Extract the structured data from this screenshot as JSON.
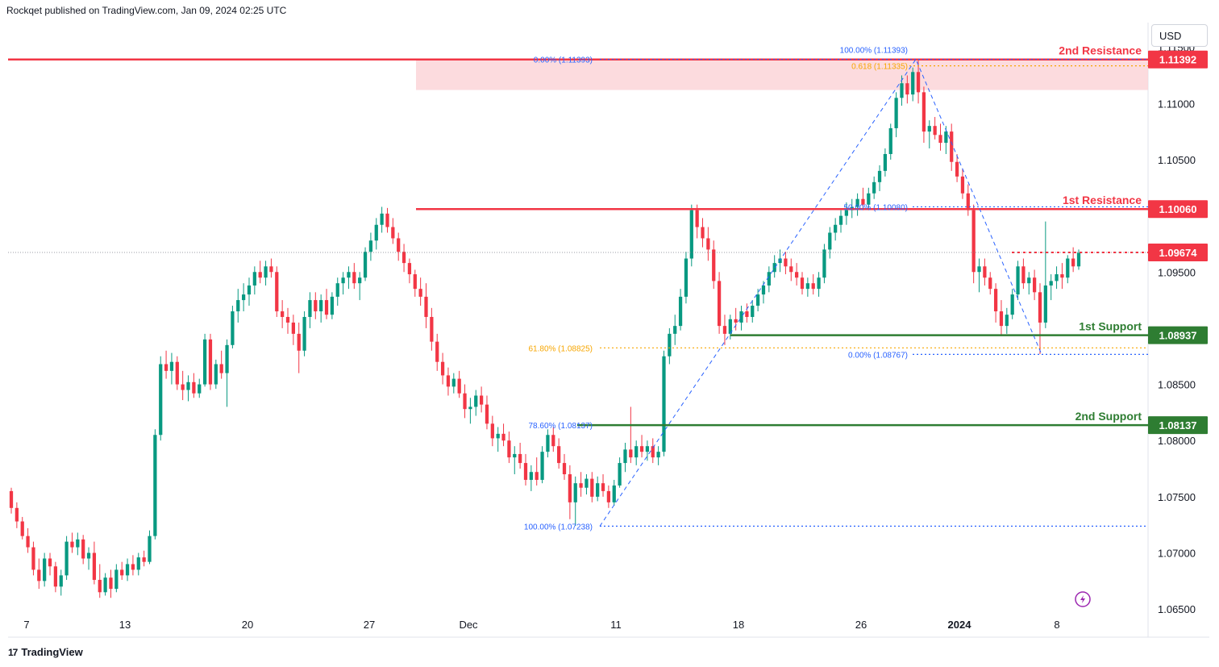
{
  "header": {
    "text": "Rockqet published on TradingView.com, Jan 09, 2024 02:25 UTC"
  },
  "toolbar": {
    "currency": "USD"
  },
  "footer": {
    "brand": "TradingView",
    "logo_mark": "17"
  },
  "colors": {
    "up": "#089981",
    "down": "#f23645",
    "resistance": "#f23645",
    "support": "#2e7d32",
    "fib_blue": "#2962ff",
    "fib_orange": "#f7a600",
    "zone": "#fcd5d8"
  },
  "chart_data": {
    "type": "candlestick",
    "symbol_quote": "USD",
    "x_ticks": [
      "7",
      "13",
      "20",
      "27",
      "Dec",
      "11",
      "18",
      "26",
      "2024",
      "8"
    ],
    "y_ticks": [
      "1.11500",
      "1.11000",
      "1.10500",
      "1.09500",
      "1.08500",
      "1.08000",
      "1.07500",
      "1.07000",
      "1.06500"
    ],
    "ylim": [
      1.0625,
      1.1172
    ],
    "last_price": 1.09674,
    "levels": [
      {
        "name": "2nd Resistance",
        "value": 1.11392,
        "label": "1.11392",
        "kind": "resistance"
      },
      {
        "name": "1st Resistance",
        "value": 1.1006,
        "label": "1.10060",
        "kind": "resistance"
      },
      {
        "name": "current",
        "value": 1.09674,
        "label": "1.09674",
        "kind": "price"
      },
      {
        "name": "1st Support",
        "value": 1.08937,
        "label": "1.08937",
        "kind": "support"
      },
      {
        "name": "2nd Support",
        "value": 1.08137,
        "label": "1.08137",
        "kind": "support"
      }
    ],
    "fib_labels": [
      {
        "text": "0.00% (1.11393)",
        "color": "blue"
      },
      {
        "text": "100.00% (1.11393)",
        "color": "blue"
      },
      {
        "text": "0.618 (1.11335)",
        "color": "orange"
      },
      {
        "text": "50.00% (1.10080)",
        "color": "blue"
      },
      {
        "text": "61.80% (1.08825)",
        "color": "orange"
      },
      {
        "text": "0.00% (1.08767)",
        "color": "blue"
      },
      {
        "text": "78.60% (1.08137)",
        "color": "blue"
      },
      {
        "text": "100.00% (1.07238)",
        "color": "blue"
      }
    ],
    "anchor_path": [
      {
        "date": "Dec 11",
        "price": 1.07238
      },
      {
        "date": "Dec 28",
        "price": 1.11393
      },
      {
        "date": "Jan 05",
        "price": 1.08767
      }
    ],
    "candles": [
      [
        1.0755,
        1.0758,
        1.0735,
        1.074
      ],
      [
        1.074,
        1.0745,
        1.0722,
        1.0728
      ],
      [
        1.0728,
        1.0732,
        1.0712,
        1.0715
      ],
      [
        1.0715,
        1.0722,
        1.07,
        1.0705
      ],
      [
        1.0705,
        1.071,
        1.068,
        1.0685
      ],
      [
        1.0685,
        1.0695,
        1.0668,
        1.0675
      ],
      [
        1.0675,
        1.07,
        1.067,
        1.0695
      ],
      [
        1.0695,
        1.07,
        1.068,
        1.0688
      ],
      [
        1.0688,
        1.0692,
        1.0665,
        1.067
      ],
      [
        1.067,
        1.0685,
        1.0662,
        1.068
      ],
      [
        1.068,
        1.0715,
        1.0676,
        1.071
      ],
      [
        1.071,
        1.0718,
        1.07,
        1.0705
      ],
      [
        1.0705,
        1.0718,
        1.0698,
        1.0712
      ],
      [
        1.0712,
        1.0716,
        1.069,
        1.0695
      ],
      [
        1.0695,
        1.0705,
        1.0685,
        1.07
      ],
      [
        1.07,
        1.071,
        1.0672,
        1.0676
      ],
      [
        1.0676,
        1.069,
        1.066,
        1.0665
      ],
      [
        1.0665,
        1.0682,
        1.0662,
        1.0678
      ],
      [
        1.0678,
        1.0685,
        1.066,
        1.0668
      ],
      [
        1.0668,
        1.069,
        1.0665,
        1.0685
      ],
      [
        1.0685,
        1.0692,
        1.0676,
        1.068
      ],
      [
        1.068,
        1.0695,
        1.0675,
        1.069
      ],
      [
        1.069,
        1.0698,
        1.068,
        1.0685
      ],
      [
        1.0685,
        1.07,
        1.068,
        1.0696
      ],
      [
        1.0696,
        1.0702,
        1.0688,
        1.0692
      ],
      [
        1.0692,
        1.072,
        1.069,
        1.0715
      ],
      [
        1.0715,
        1.081,
        1.0712,
        1.0805
      ],
      [
        1.0805,
        1.0875,
        1.08,
        1.0868
      ],
      [
        1.0868,
        1.088,
        1.0855,
        1.0862
      ],
      [
        1.0862,
        1.0878,
        1.085,
        1.087
      ],
      [
        1.087,
        1.0875,
        1.0845,
        1.085
      ],
      [
        1.085,
        1.0862,
        1.0836,
        1.0845
      ],
      [
        1.0845,
        1.0858,
        1.0835,
        1.0852
      ],
      [
        1.0852,
        1.086,
        1.0838,
        1.0842
      ],
      [
        1.0842,
        1.0855,
        1.0838,
        1.085
      ],
      [
        1.085,
        1.0895,
        1.0848,
        1.089
      ],
      [
        1.089,
        1.0895,
        1.0845,
        1.085
      ],
      [
        1.085,
        1.0872,
        1.0846,
        1.0868
      ],
      [
        1.0868,
        1.088,
        1.0855,
        1.086
      ],
      [
        1.086,
        1.089,
        1.083,
        1.0885
      ],
      [
        1.0885,
        1.092,
        1.0882,
        1.0915
      ],
      [
        1.0915,
        1.0935,
        1.0905,
        1.0925
      ],
      [
        1.0925,
        1.094,
        1.0915,
        1.093
      ],
      [
        1.093,
        1.0945,
        1.092,
        1.0938
      ],
      [
        1.0938,
        1.0955,
        1.093,
        1.095
      ],
      [
        1.095,
        1.096,
        1.094,
        1.0945
      ],
      [
        1.0945,
        1.096,
        1.0938,
        1.0955
      ],
      [
        1.0955,
        1.0962,
        1.0945,
        1.095
      ],
      [
        1.095,
        1.0955,
        1.091,
        1.0915
      ],
      [
        1.0915,
        1.0925,
        1.09,
        1.091
      ],
      [
        1.091,
        1.0918,
        1.0895,
        1.0905
      ],
      [
        1.0905,
        1.0912,
        1.0885,
        1.0895
      ],
      [
        1.0895,
        1.0905,
        1.086,
        1.088
      ],
      [
        1.088,
        1.0915,
        1.0875,
        1.091
      ],
      [
        1.091,
        1.0932,
        1.09,
        1.0925
      ],
      [
        1.0925,
        1.0932,
        1.0908,
        1.0915
      ],
      [
        1.0915,
        1.093,
        1.0905,
        1.0925
      ],
      [
        1.0925,
        1.0935,
        1.0908,
        1.0912
      ],
      [
        1.0912,
        1.0932,
        1.0908,
        1.0928
      ],
      [
        1.0928,
        1.0945,
        1.092,
        1.094
      ],
      [
        1.094,
        1.095,
        1.093,
        1.0945
      ],
      [
        1.0945,
        1.0955,
        1.0935,
        1.095
      ],
      [
        1.095,
        1.0958,
        1.0935,
        1.094
      ],
      [
        1.094,
        1.095,
        1.0925,
        1.0945
      ],
      [
        1.0945,
        1.0972,
        1.0942,
        1.0968
      ],
      [
        1.0968,
        1.0985,
        1.096,
        1.0978
      ],
      [
        1.0978,
        1.0998,
        1.097,
        1.0992
      ],
      [
        1.0992,
        1.1008,
        1.0985,
        1.1002
      ],
      [
        1.1002,
        1.1007,
        1.0985,
        1.099
      ],
      [
        1.099,
        1.0998,
        1.0975,
        1.098
      ],
      [
        1.098,
        1.0985,
        1.096,
        1.0968
      ],
      [
        1.0968,
        1.0975,
        1.095,
        1.0958
      ],
      [
        1.0958,
        1.0962,
        1.094,
        1.0948
      ],
      [
        1.0948,
        1.0952,
        1.0928,
        1.0935
      ],
      [
        1.0935,
        1.0945,
        1.092,
        1.0928
      ],
      [
        1.0928,
        1.094,
        1.09,
        1.091
      ],
      [
        1.091,
        1.0918,
        1.088,
        1.0888
      ],
      [
        1.0888,
        1.0895,
        1.0862,
        1.087
      ],
      [
        1.087,
        1.0878,
        1.085,
        1.0858
      ],
      [
        1.0858,
        1.0865,
        1.084,
        1.0848
      ],
      [
        1.0848,
        1.086,
        1.0842,
        1.0855
      ],
      [
        1.0855,
        1.0862,
        1.0838,
        1.0842
      ],
      [
        1.0842,
        1.085,
        1.082,
        1.0828
      ],
      [
        1.0828,
        1.0838,
        1.0815,
        1.083
      ],
      [
        1.083,
        1.0845,
        1.0822,
        1.084
      ],
      [
        1.084,
        1.0848,
        1.0825,
        1.0832
      ],
      [
        1.0832,
        1.084,
        1.081,
        1.0815
      ],
      [
        1.0815,
        1.0822,
        1.0795,
        1.0802
      ],
      [
        1.0802,
        1.0812,
        1.079,
        1.0806
      ],
      [
        1.0806,
        1.0815,
        1.0795,
        1.08
      ],
      [
        1.08,
        1.0808,
        1.078,
        1.0785
      ],
      [
        1.0785,
        1.0795,
        1.077,
        1.0788
      ],
      [
        1.0788,
        1.0798,
        1.0775,
        1.078
      ],
      [
        1.078,
        1.0788,
        1.076,
        1.0765
      ],
      [
        1.0765,
        1.0778,
        1.0755,
        1.0772
      ],
      [
        1.0772,
        1.0785,
        1.076,
        1.0765
      ],
      [
        1.0765,
        1.0795,
        1.0762,
        1.079
      ],
      [
        1.079,
        1.081,
        1.0785,
        1.0805
      ],
      [
        1.0805,
        1.0812,
        1.079,
        1.0795
      ],
      [
        1.0795,
        1.0802,
        1.0775,
        1.078
      ],
      [
        1.078,
        1.0788,
        1.0765,
        1.077
      ],
      [
        1.077,
        1.0778,
        1.073,
        1.0745
      ],
      [
        1.0745,
        1.0768,
        1.0724,
        1.0762
      ],
      [
        1.0762,
        1.0772,
        1.075,
        1.0758
      ],
      [
        1.0758,
        1.077,
        1.0752,
        1.0766
      ],
      [
        1.0766,
        1.0772,
        1.0745,
        1.075
      ],
      [
        1.075,
        1.0768,
        1.0746,
        1.0762
      ],
      [
        1.0762,
        1.077,
        1.075,
        1.0755
      ],
      [
        1.0755,
        1.076,
        1.074,
        1.0745
      ],
      [
        1.0745,
        1.0765,
        1.0742,
        1.076
      ],
      [
        1.076,
        1.0785,
        1.0758,
        1.078
      ],
      [
        1.078,
        1.0798,
        1.0772,
        1.0792
      ],
      [
        1.0792,
        1.083,
        1.078,
        1.0785
      ],
      [
        1.0785,
        1.08,
        1.0778,
        1.0795
      ],
      [
        1.0795,
        1.0805,
        1.0785,
        1.079
      ],
      [
        1.079,
        1.08,
        1.0782,
        1.0795
      ],
      [
        1.0795,
        1.0802,
        1.078,
        1.0785
      ],
      [
        1.0785,
        1.0795,
        1.0778,
        1.079
      ],
      [
        1.079,
        1.088,
        1.0786,
        1.0875
      ],
      [
        1.0875,
        1.09,
        1.0868,
        1.0895
      ],
      [
        1.0895,
        1.0912,
        1.0885,
        1.0902
      ],
      [
        1.0902,
        1.0935,
        1.0898,
        1.0928
      ],
      [
        1.0928,
        1.0968,
        1.0922,
        1.0962
      ],
      [
        1.0962,
        1.101,
        1.0955,
        1.1005
      ],
      [
        1.1005,
        1.101,
        1.098,
        1.099
      ],
      [
        1.099,
        1.0998,
        1.0972,
        1.098
      ],
      [
        1.098,
        1.099,
        1.096,
        1.097
      ],
      [
        1.097,
        1.0978,
        1.0935,
        1.0942
      ],
      [
        1.0942,
        1.095,
        1.0895,
        1.0902
      ],
      [
        1.0902,
        1.0912,
        1.0885,
        1.0895
      ],
      [
        1.0895,
        1.0912,
        1.089,
        1.0908
      ],
      [
        1.0908,
        1.0918,
        1.0898,
        1.0905
      ],
      [
        1.0905,
        1.092,
        1.0898,
        1.0915
      ],
      [
        1.0915,
        1.0922,
        1.0905,
        1.091
      ],
      [
        1.091,
        1.0925,
        1.0905,
        1.092
      ],
      [
        1.092,
        1.0935,
        1.0915,
        1.093
      ],
      [
        1.093,
        1.0942,
        1.0922,
        1.0938
      ],
      [
        1.0938,
        1.0955,
        1.0932,
        1.095
      ],
      [
        1.095,
        1.0965,
        1.0945,
        1.0958
      ],
      [
        1.0958,
        1.097,
        1.095,
        1.0962
      ],
      [
        1.0962,
        1.0968,
        1.0948,
        1.0955
      ],
      [
        1.0955,
        1.0962,
        1.0942,
        1.095
      ],
      [
        1.095,
        1.0958,
        1.0938,
        1.0945
      ],
      [
        1.0945,
        1.095,
        1.093,
        1.0935
      ],
      [
        1.0935,
        1.0945,
        1.0928,
        1.094
      ],
      [
        1.094,
        1.0948,
        1.093,
        1.0935
      ],
      [
        1.0935,
        1.095,
        1.0928,
        1.0945
      ],
      [
        1.0945,
        1.0975,
        1.094,
        1.097
      ],
      [
        1.097,
        1.099,
        1.0962,
        1.0985
      ],
      [
        1.0985,
        1.0998,
        1.0978,
        1.0992
      ],
      [
        1.0992,
        1.1005,
        1.0985,
        1.1
      ],
      [
        1.1,
        1.1012,
        1.0992,
        1.1005
      ],
      [
        1.1005,
        1.1015,
        1.0998,
        1.1008
      ],
      [
        1.1008,
        1.102,
        1.1,
        1.1015
      ],
      [
        1.1015,
        1.1025,
        1.1005,
        1.101
      ],
      [
        1.101,
        1.1025,
        1.1005,
        1.102
      ],
      [
        1.102,
        1.1035,
        1.1015,
        1.103
      ],
      [
        1.103,
        1.1045,
        1.1022,
        1.104
      ],
      [
        1.104,
        1.106,
        1.1035,
        1.1055
      ],
      [
        1.1055,
        1.1082,
        1.105,
        1.1078
      ],
      [
        1.1078,
        1.111,
        1.107,
        1.1105
      ],
      [
        1.1105,
        1.1125,
        1.1098,
        1.1118
      ],
      [
        1.1118,
        1.1125,
        1.11,
        1.1108
      ],
      [
        1.1108,
        1.1132,
        1.1102,
        1.1128
      ],
      [
        1.1128,
        1.1139,
        1.11,
        1.111
      ],
      [
        1.111,
        1.1115,
        1.1065,
        1.1075
      ],
      [
        1.1075,
        1.1085,
        1.106,
        1.108
      ],
      [
        1.108,
        1.1088,
        1.1068,
        1.1072
      ],
      [
        1.1072,
        1.1082,
        1.1058,
        1.1065
      ],
      [
        1.1065,
        1.108,
        1.1055,
        1.1075
      ],
      [
        1.1075,
        1.1082,
        1.104,
        1.1048
      ],
      [
        1.1048,
        1.1055,
        1.103,
        1.1035
      ],
      [
        1.1035,
        1.1042,
        1.1015,
        1.102
      ],
      [
        1.102,
        1.1028,
        1.1,
        1.1005
      ],
      [
        1.1005,
        1.101,
        1.094,
        1.095
      ],
      [
        1.095,
        1.0962,
        1.0932,
        1.0955
      ],
      [
        1.0955,
        1.0962,
        1.0938,
        1.0945
      ],
      [
        1.0945,
        1.095,
        1.093,
        1.0935
      ],
      [
        1.0935,
        1.094,
        1.0905,
        1.0915
      ],
      [
        1.0915,
        1.0925,
        1.0893,
        1.0902
      ],
      [
        1.0902,
        1.0918,
        1.0895,
        1.0912
      ],
      [
        1.0912,
        1.0935,
        1.0908,
        1.093
      ],
      [
        1.093,
        1.096,
        1.0925,
        1.0955
      ],
      [
        1.0955,
        1.0962,
        1.0935,
        1.094
      ],
      [
        1.094,
        1.095,
        1.093,
        1.0945
      ],
      [
        1.0945,
        1.0952,
        1.0925,
        1.0932
      ],
      [
        1.0932,
        1.094,
        1.0877,
        1.0905
      ],
      [
        1.0905,
        1.0995,
        1.09,
        1.0938
      ],
      [
        1.0938,
        1.0948,
        1.0925,
        1.0942
      ],
      [
        1.0942,
        1.0955,
        1.0935,
        1.0948
      ],
      [
        1.0948,
        1.0958,
        1.0935,
        1.0945
      ],
      [
        1.0945,
        1.0965,
        1.094,
        1.0962
      ],
      [
        1.0962,
        1.0972,
        1.095,
        1.0955
      ],
      [
        1.0955,
        1.097,
        1.0952,
        1.0967
      ]
    ]
  }
}
